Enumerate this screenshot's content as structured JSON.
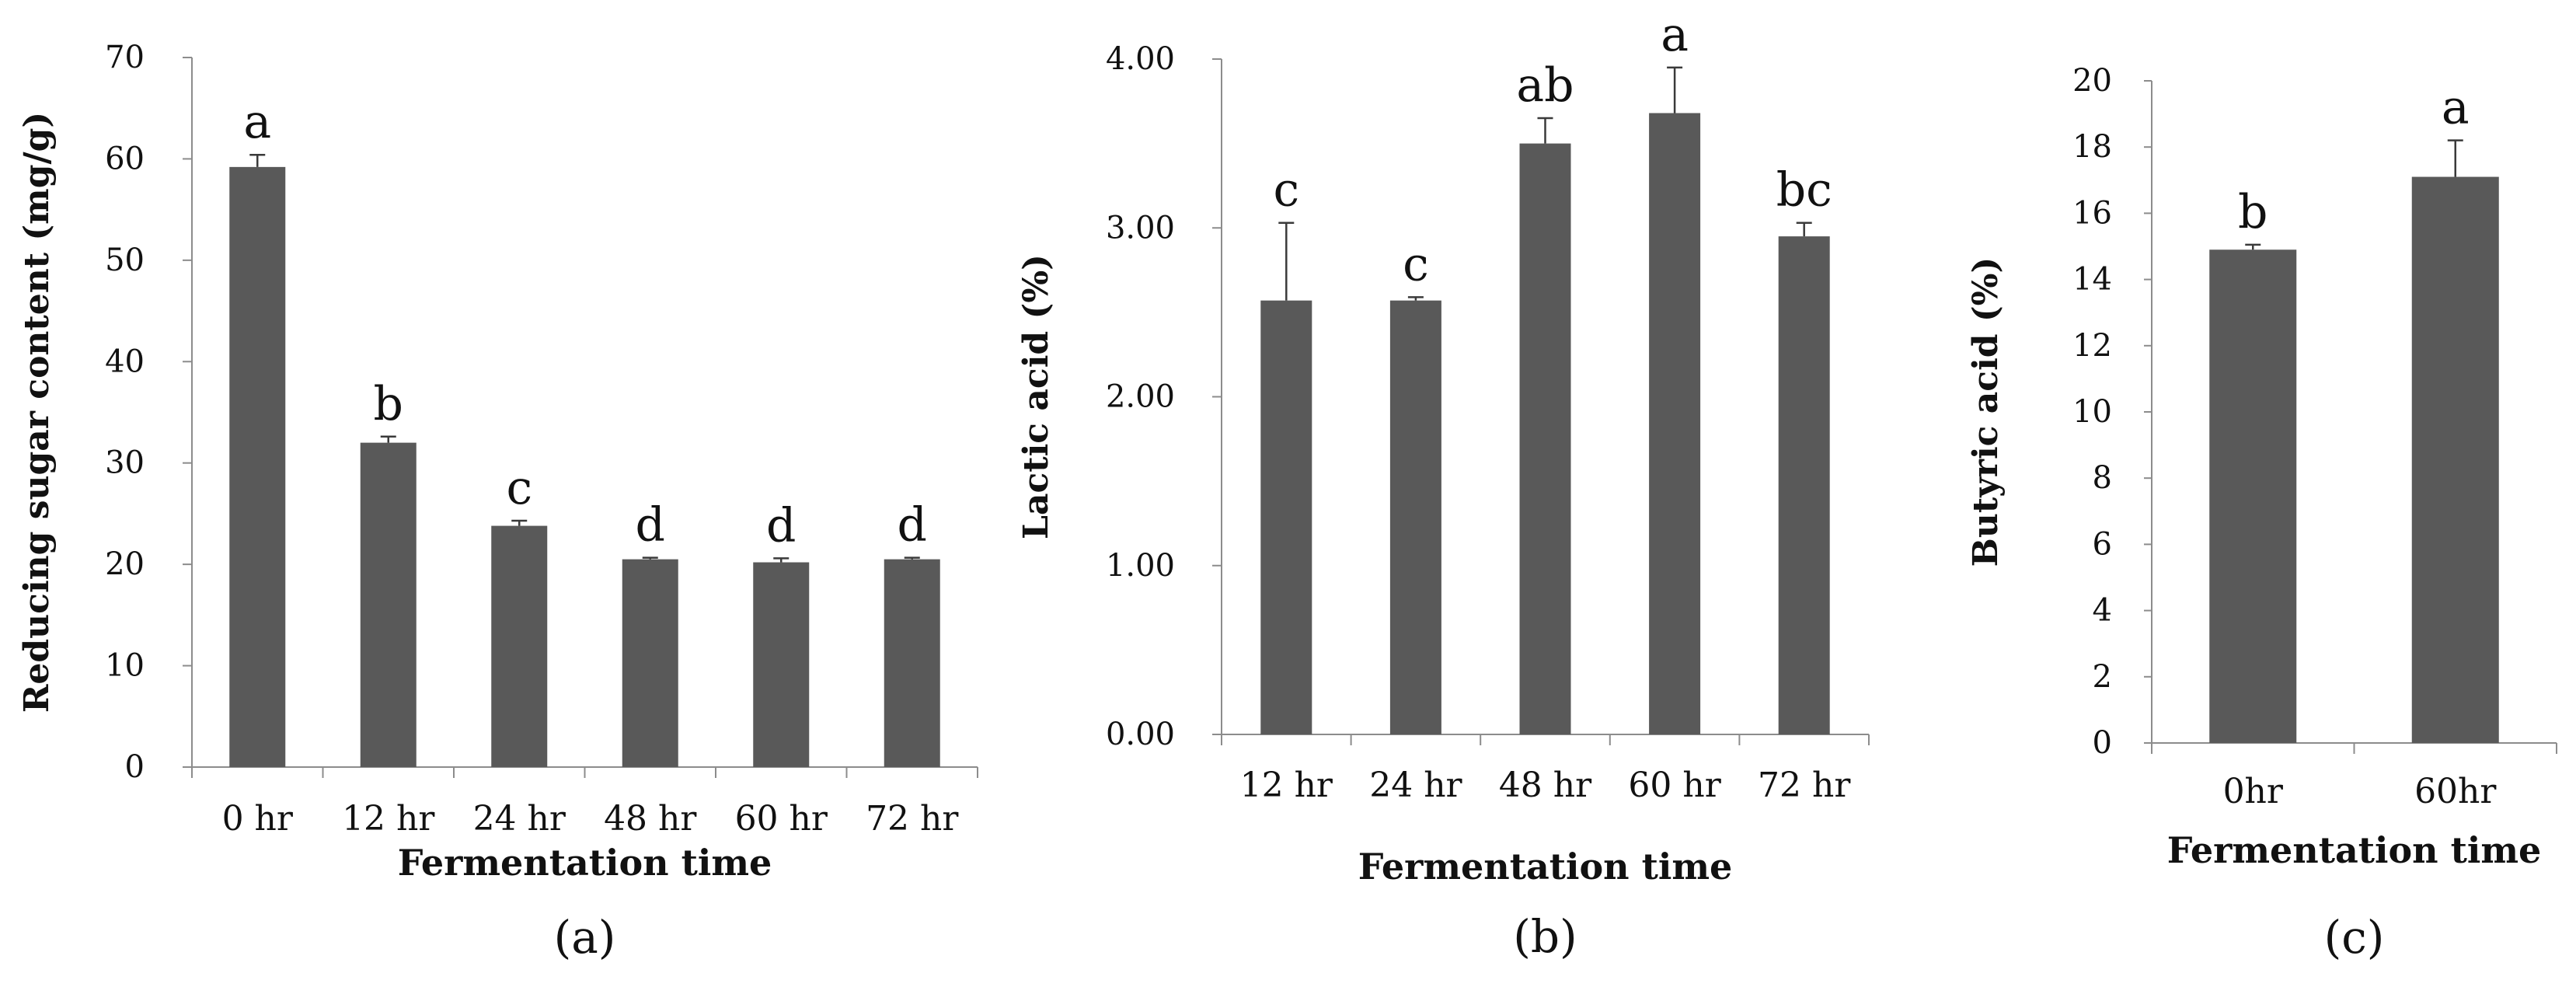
{
  "chart_data": [
    {
      "type": "bar",
      "panel_label": "(a)",
      "title": "",
      "xlabel": "Fermentation time",
      "ylabel": "Reducing sugar content  (mg/g)",
      "categories": [
        "0 hr",
        "12 hr",
        "24 hr",
        "48 hr",
        "60 hr",
        "72 hr"
      ],
      "values": [
        59.2,
        32.0,
        23.8,
        20.5,
        20.2,
        20.5
      ],
      "errors": [
        1.2,
        0.6,
        0.5,
        0.15,
        0.4,
        0.15
      ],
      "significance": [
        "a",
        "b",
        "c",
        "d",
        "d",
        "d"
      ],
      "ylim": [
        0,
        70
      ],
      "yticks": [
        "0",
        "10",
        "20",
        "30",
        "40",
        "50",
        "60",
        "70"
      ],
      "ytick_values": [
        0,
        10,
        20,
        30,
        40,
        50,
        60,
        70
      ],
      "bar_color": "#595959"
    },
    {
      "type": "bar",
      "panel_label": "(b)",
      "title": "",
      "xlabel": "Fermentation time",
      "ylabel": "Lactic acid  (%)",
      "categories": [
        "12 hr",
        "24 hr",
        "48 hr",
        "60 hr",
        "72 hr"
      ],
      "values": [
        2.57,
        2.57,
        3.5,
        3.68,
        2.95
      ],
      "errors": [
        0.46,
        0.02,
        0.15,
        0.27,
        0.08
      ],
      "significance": [
        "c",
        "c",
        "ab",
        "a",
        "bc"
      ],
      "ylim": [
        0,
        4
      ],
      "yticks": [
        "0.00",
        "1.00",
        "2.00",
        "3.00",
        "4.00"
      ],
      "ytick_values": [
        0,
        1,
        2,
        3,
        4
      ],
      "bar_color": "#595959"
    },
    {
      "type": "bar",
      "panel_label": "(c)",
      "title": "",
      "xlabel": "Fermentation time",
      "ylabel": "Butyric acid  (%)",
      "categories": [
        "0hr",
        "60hr"
      ],
      "values": [
        14.9,
        17.1
      ],
      "errors": [
        0.15,
        1.1
      ],
      "significance": [
        "b",
        "a"
      ],
      "ylim": [
        0,
        20
      ],
      "yticks": [
        "0",
        "2",
        "4",
        "6",
        "8",
        "10",
        "12",
        "14",
        "16",
        "18",
        "20"
      ],
      "ytick_values": [
        0,
        2,
        4,
        6,
        8,
        10,
        12,
        14,
        16,
        18,
        20
      ],
      "bar_color": "#595959"
    }
  ]
}
